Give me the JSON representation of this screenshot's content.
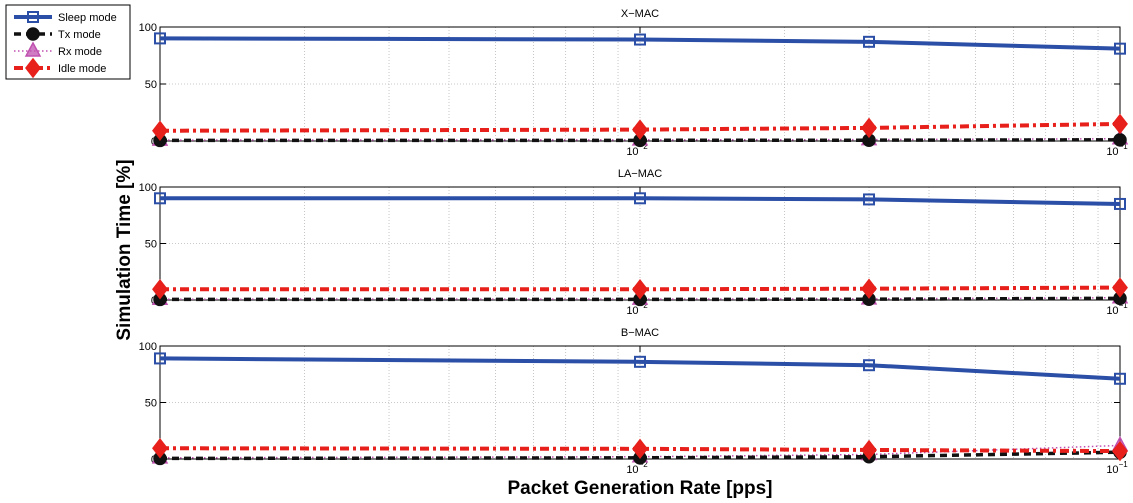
{
  "figure": {
    "ylabel": "Simulation Time [%]",
    "xlabel": "Packet Generation Rate [pps]"
  },
  "legend": {
    "placement": "top-left",
    "entries": [
      {
        "label": "Sleep mode",
        "color": "#2b4ea6",
        "marker": "square"
      },
      {
        "label": "Tx mode",
        "color": "#111111",
        "marker": "circle"
      },
      {
        "label": "Rx mode",
        "color": "#c050b0",
        "marker": "triangle"
      },
      {
        "label": "Idle mode",
        "color": "#e8201b",
        "marker": "diamond"
      }
    ]
  },
  "chart_data": [
    {
      "type": "line",
      "title": "X−MAC",
      "xscale": "log",
      "x": [
        0.001,
        0.01,
        0.03,
        0.1
      ],
      "xlim": [
        0.001,
        0.1
      ],
      "ylim": [
        0,
        100
      ],
      "yticks": [
        {
          "value": 0,
          "label": "0"
        },
        {
          "value": 50,
          "label": "50"
        },
        {
          "value": 100,
          "label": "100"
        }
      ],
      "xticks": [
        {
          "value": 0.01,
          "base": "10",
          "exp": "−2"
        },
        {
          "value": 0.1,
          "base": "10",
          "exp": "−1"
        }
      ],
      "grid": true,
      "series": [
        {
          "name": "Sleep mode",
          "values": [
            90,
            89,
            87,
            81
          ]
        },
        {
          "name": "Tx mode",
          "values": [
            0.5,
            0.6,
            0.7,
            1
          ]
        },
        {
          "name": "Rx mode",
          "values": [
            0.8,
            1,
            1.2,
            2
          ]
        },
        {
          "name": "Idle mode",
          "values": [
            9,
            10,
            11.5,
            15
          ]
        }
      ]
    },
    {
      "type": "line",
      "title": "LA−MAC",
      "xscale": "log",
      "x": [
        0.001,
        0.01,
        0.03,
        0.1
      ],
      "xlim": [
        0.001,
        0.1
      ],
      "ylim": [
        0,
        100
      ],
      "yticks": [
        {
          "value": 0,
          "label": "0"
        },
        {
          "value": 50,
          "label": "50"
        },
        {
          "value": 100,
          "label": "100"
        }
      ],
      "xticks": [
        {
          "value": 0.01,
          "base": "10",
          "exp": "−2"
        },
        {
          "value": 0.1,
          "base": "10",
          "exp": "−1"
        }
      ],
      "grid": true,
      "series": [
        {
          "name": "Sleep mode",
          "values": [
            90,
            90,
            89,
            85
          ]
        },
        {
          "name": "Tx mode",
          "values": [
            0.5,
            0.5,
            0.7,
            1.5
          ]
        },
        {
          "name": "Rx mode",
          "values": [
            0.7,
            0.8,
            1,
            2
          ]
        },
        {
          "name": "Idle mode",
          "values": [
            9.5,
            9.5,
            10,
            11
          ]
        }
      ]
    },
    {
      "type": "line",
      "title": "B−MAC",
      "xscale": "log",
      "x": [
        0.001,
        0.01,
        0.03,
        0.1
      ],
      "xlim": [
        0.001,
        0.1
      ],
      "ylim": [
        0,
        100
      ],
      "yticks": [
        {
          "value": 0,
          "label": "0"
        },
        {
          "value": 50,
          "label": "50"
        },
        {
          "value": 100,
          "label": "100"
        }
      ],
      "xticks": [
        {
          "value": 0.01,
          "base": "10",
          "exp": "−2"
        },
        {
          "value": 0.1,
          "base": "10",
          "exp": "−1"
        }
      ],
      "grid": true,
      "series": [
        {
          "name": "Sleep mode",
          "values": [
            89,
            86,
            83,
            71
          ]
        },
        {
          "name": "Tx mode",
          "values": [
            0.5,
            1,
            2,
            6
          ]
        },
        {
          "name": "Rx mode",
          "values": [
            1,
            2,
            4,
            12
          ]
        },
        {
          "name": "Idle mode",
          "values": [
            9.5,
            9,
            8,
            7
          ]
        }
      ]
    }
  ]
}
